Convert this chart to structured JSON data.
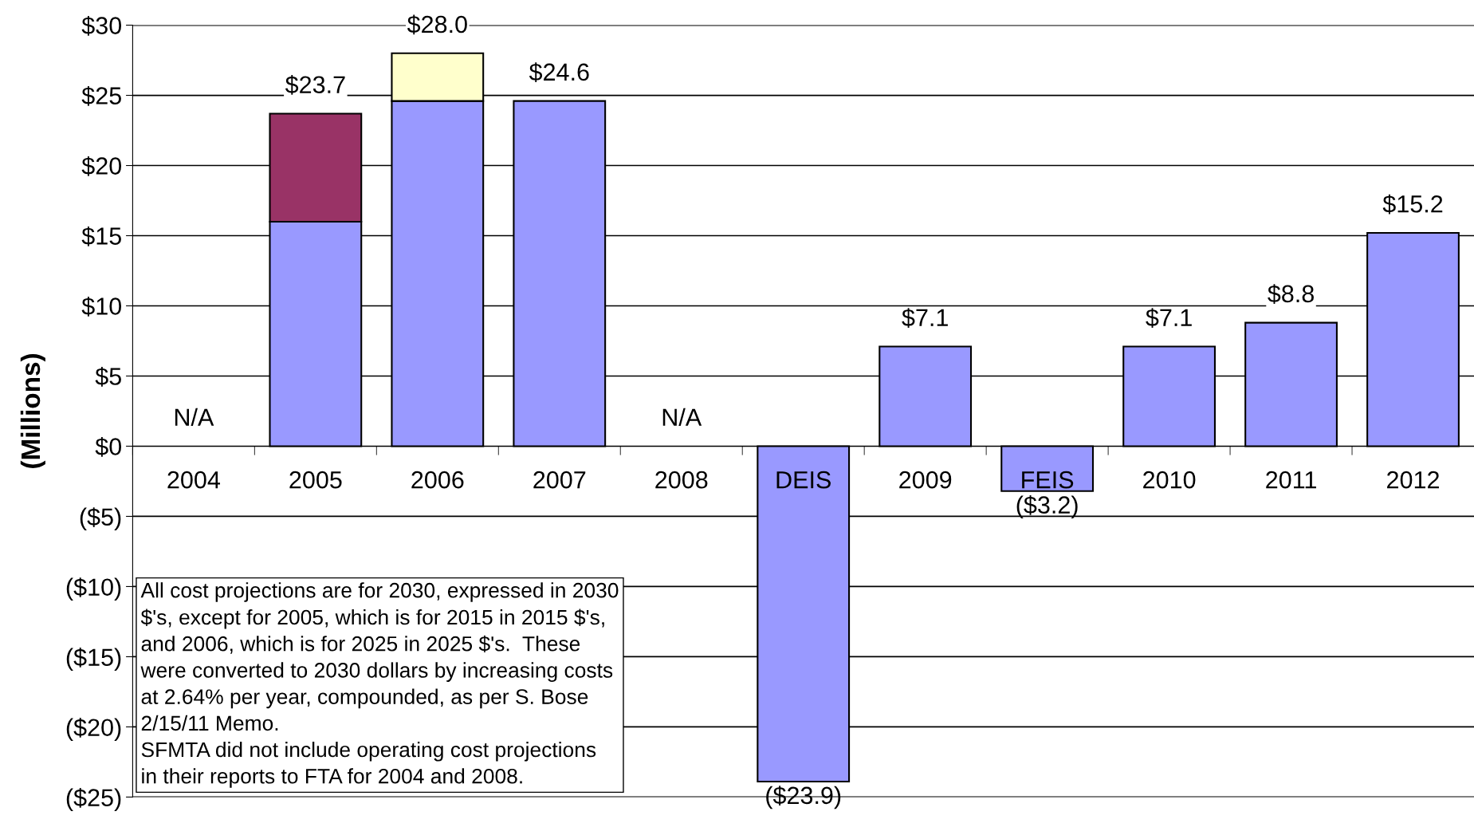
{
  "chart_data": {
    "type": "bar",
    "ylabel": "(Millions)",
    "stacked": true,
    "grid": "y",
    "categories": [
      "2004",
      "2005",
      "2006",
      "2007",
      "2008",
      "DEIS",
      "2009",
      "FEIS",
      "2010",
      "2011",
      "2012"
    ],
    "series": [
      {
        "color": "#9999ff",
        "values": [
          null,
          16.0,
          24.6,
          24.6,
          null,
          -23.9,
          7.1,
          -3.2,
          7.1,
          8.8,
          15.2
        ]
      },
      {
        "color": "#993366",
        "values": [
          null,
          7.7,
          null,
          null,
          null,
          null,
          null,
          null,
          null,
          null,
          null
        ]
      },
      {
        "color": "#ffffcc",
        "values": [
          null,
          null,
          3.4,
          null,
          null,
          null,
          null,
          null,
          null,
          null,
          null
        ]
      }
    ],
    "totals": [
      "N/A",
      "$23.7",
      "$28.0",
      "$24.6",
      "N/A",
      "($23.9)",
      "$7.1",
      "($3.2)",
      "$7.1",
      "$8.8",
      "$15.2"
    ],
    "ylim": [
      -25,
      30
    ],
    "yticks": [
      {
        "value": -25,
        "label": "($25)"
      },
      {
        "value": -20,
        "label": "($20)"
      },
      {
        "value": -15,
        "label": "($15)"
      },
      {
        "value": -10,
        "label": "($10)"
      },
      {
        "value": -5,
        "label": "($5)"
      },
      {
        "value": 0,
        "label": "$0"
      },
      {
        "value": 5,
        "label": "$5"
      },
      {
        "value": 10,
        "label": "$10"
      },
      {
        "value": 15,
        "label": "$15"
      },
      {
        "value": 20,
        "label": "$20"
      },
      {
        "value": 25,
        "label": "$25"
      },
      {
        "value": 30,
        "label": "$30"
      }
    ],
    "annotations": [
      "All cost projections are for 2030, expressed in 2030\n$'s, except for 2005, which is for 2015 in 2015 $'s,\nand 2006, which is for 2025 in 2025 $'s.  These\nwere converted to 2030 dollars by increasing costs\nat 2.64% per year, compounded, as per S. Bose\n2/15/11 Memo.\nSFMTA did not include operating cost projections\nin their reports to FTA for 2004 and 2008."
    ]
  }
}
